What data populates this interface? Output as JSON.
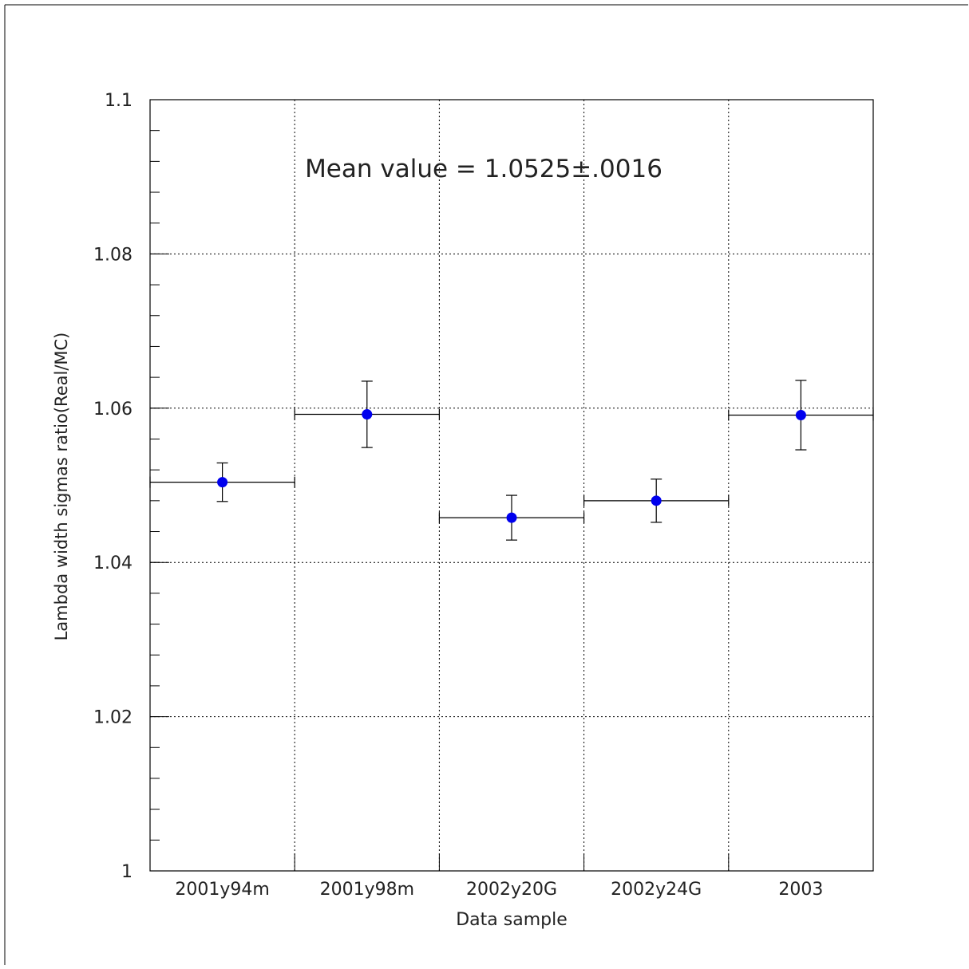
{
  "chart_data": {
    "type": "scatter",
    "title": "",
    "annotation": "Mean value = 1.0525±.0016",
    "xlabel": "Data sample",
    "ylabel": "Lambda width sigmas ratio(Real/MC)",
    "categories": [
      "2001y94m",
      "2001y98m",
      "2002y20G",
      "2002y24G",
      "2003"
    ],
    "values": [
      1.0504,
      1.0592,
      1.0458,
      1.048,
      1.0591
    ],
    "errors": [
      0.0025,
      0.0043,
      0.0029,
      0.0028,
      0.0045
    ],
    "ylim": [
      1,
      1.1
    ],
    "yticks": [
      1,
      1.02,
      1.04,
      1.06,
      1.08,
      1.1
    ],
    "ytick_labels": [
      "1",
      "1.02",
      "1.04",
      "1.06",
      "1.08",
      "1.1"
    ],
    "grid": true,
    "marker_color": "#0000ee"
  }
}
